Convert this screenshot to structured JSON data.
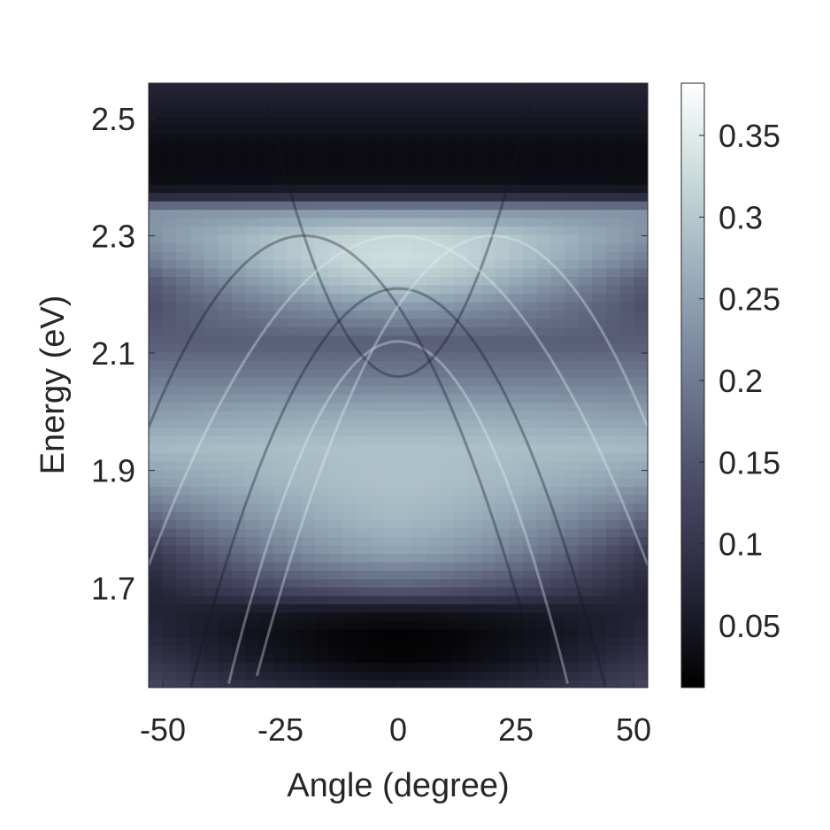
{
  "chart_data": {
    "type": "heatmap",
    "title": "",
    "xlabel": "Angle (degree)",
    "ylabel": "Energy (eV)",
    "xlim": [
      -53,
      53
    ],
    "ylim": [
      1.53,
      2.56
    ],
    "xticks": [
      -50,
      -25,
      0,
      25,
      50
    ],
    "xtick_labels": [
      "-50",
      "-25",
      "0",
      "25",
      "50"
    ],
    "yticks": [
      1.7,
      1.9,
      2.1,
      2.3,
      2.5
    ],
    "ytick_labels": [
      "1.7",
      "1.9",
      "2.1",
      "2.3",
      "2.5"
    ],
    "colorbar": {
      "range": [
        0.012,
        0.382
      ],
      "ticks": [
        0.05,
        0.1,
        0.15,
        0.2,
        0.25,
        0.3,
        0.35
      ],
      "tick_labels": [
        "0.05",
        "0.1",
        "0.15",
        "0.2",
        "0.25",
        "0.3",
        "0.35"
      ],
      "colormap": "bone",
      "stops": [
        "#000000",
        "#26263a",
        "#4a4a66",
        "#6e7990",
        "#94a9b8",
        "#c6d8d8",
        "#ffffff"
      ]
    },
    "intensity_profile_vs_energy": {
      "energy": [
        1.53,
        1.58,
        1.62,
        1.66,
        1.7,
        1.76,
        1.82,
        1.88,
        1.94,
        2.0,
        2.06,
        2.12,
        2.18,
        2.22,
        2.26,
        2.3,
        2.34,
        2.36,
        2.37,
        2.4,
        2.45,
        2.5,
        2.56
      ],
      "center_intensity": [
        0.06,
        0.02,
        0.015,
        0.04,
        0.16,
        0.25,
        0.28,
        0.29,
        0.29,
        0.26,
        0.2,
        0.16,
        0.24,
        0.3,
        0.33,
        0.32,
        0.24,
        0.15,
        0.07,
        0.03,
        0.03,
        0.05,
        0.07
      ],
      "edge_intensity": [
        0.13,
        0.1,
        0.08,
        0.07,
        0.07,
        0.1,
        0.17,
        0.24,
        0.28,
        0.24,
        0.2,
        0.16,
        0.14,
        0.15,
        0.2,
        0.23,
        0.23,
        0.14,
        0.06,
        0.03,
        0.03,
        0.05,
        0.07
      ]
    },
    "dispersion_branches": [
      {
        "vertex_angle": 0,
        "vertex_energy": 2.21,
        "curvature": 0.00035,
        "opens": "down"
      },
      {
        "vertex_angle": 0,
        "vertex_energy": 2.12,
        "curvature": 0.00045,
        "opens": "down"
      },
      {
        "vertex_angle": 0,
        "vertex_energy": 2.06,
        "curvature": 0.0006,
        "opens": "up"
      },
      {
        "vertex_angle": 0,
        "vertex_energy": 2.3,
        "curvature": 0.0002,
        "opens": "down"
      },
      {
        "vertex_angle": -20,
        "vertex_energy": 2.3,
        "curvature": 0.0003,
        "opens": "down"
      },
      {
        "vertex_angle": 20,
        "vertex_energy": 2.3,
        "curvature": 0.0003,
        "opens": "down"
      }
    ]
  }
}
